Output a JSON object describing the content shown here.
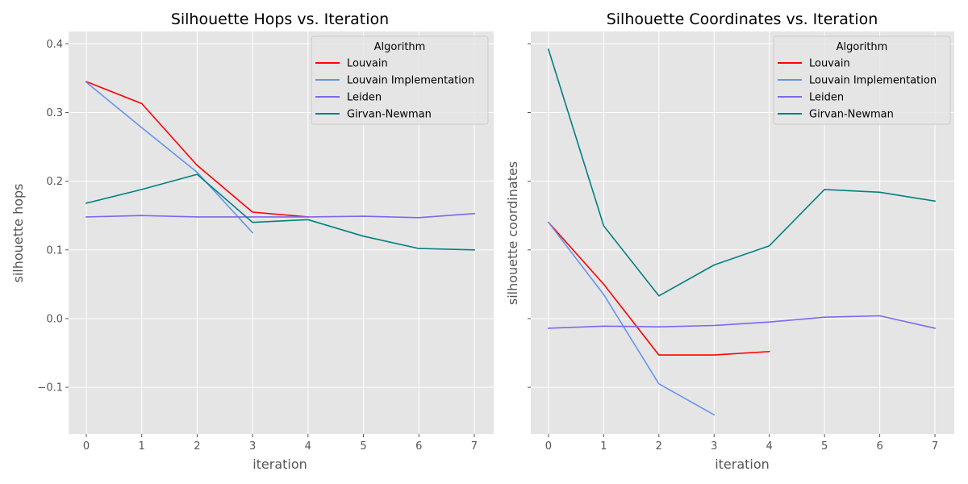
{
  "colors": {
    "plot_background": "#e5e5e5",
    "grid": "#ffffff",
    "tick_text": "#555555"
  },
  "chart_data": [
    {
      "type": "line",
      "title": "Silhouette Hops vs. Iteration",
      "xlabel": "iteration",
      "ylabel": "silhouette hops",
      "xlim": [
        -0.32,
        7.35
      ],
      "ylim": [
        -0.168,
        0.418
      ],
      "xticks": [
        0,
        1,
        2,
        3,
        4,
        5,
        6,
        7
      ],
      "yticks": [
        -0.1,
        0.0,
        0.1,
        0.2,
        0.3,
        0.4
      ],
      "ytick_labels": [
        "−0.1",
        "0.0",
        "0.1",
        "0.2",
        "0.3",
        "0.4"
      ],
      "grid": true,
      "legend": {
        "title": "Algorithm",
        "placement": "top-right"
      },
      "series": [
        {
          "name": "Louvain",
          "color": "#ff0000",
          "x": [
            0,
            1,
            2,
            3,
            4
          ],
          "y": [
            0.345,
            0.313,
            0.223,
            0.155,
            0.148
          ]
        },
        {
          "name": "Louvain Implementation",
          "color": "#6495ed",
          "x": [
            0,
            1,
            2,
            3
          ],
          "y": [
            0.344,
            0.278,
            0.213,
            0.125
          ]
        },
        {
          "name": "Leiden",
          "color": "#7b68ee",
          "x": [
            0,
            1,
            2,
            3,
            4,
            5,
            6,
            7
          ],
          "y": [
            0.148,
            0.15,
            0.148,
            0.148,
            0.148,
            0.149,
            0.147,
            0.153
          ]
        },
        {
          "name": "Girvan-Newman",
          "color": "#008080",
          "x": [
            0,
            1,
            2,
            3,
            4,
            5,
            6,
            7
          ],
          "y": [
            0.168,
            0.188,
            0.21,
            0.14,
            0.144,
            0.12,
            0.102,
            0.1
          ]
        }
      ]
    },
    {
      "type": "line",
      "title": "Silhouette Coordinates vs. Iteration",
      "xlabel": "iteration",
      "ylabel": "silhouette coordinates",
      "xlim": [
        -0.32,
        7.35
      ],
      "ylim": [
        -0.168,
        0.418
      ],
      "xticks": [
        0,
        1,
        2,
        3,
        4,
        5,
        6,
        7
      ],
      "yticks": [
        -0.1,
        0.0,
        0.1,
        0.2,
        0.3,
        0.4
      ],
      "ytick_labels": [],
      "grid": true,
      "legend": {
        "title": "Algorithm",
        "placement": "top-right"
      },
      "series": [
        {
          "name": "Louvain",
          "color": "#ff0000",
          "x": [
            0,
            1,
            2,
            3,
            4
          ],
          "y": [
            0.14,
            0.05,
            -0.053,
            -0.053,
            -0.048
          ]
        },
        {
          "name": "Louvain Implementation",
          "color": "#6495ed",
          "x": [
            0,
            1,
            2,
            3
          ],
          "y": [
            0.14,
            0.035,
            -0.095,
            -0.14
          ]
        },
        {
          "name": "Leiden",
          "color": "#7b68ee",
          "x": [
            0,
            1,
            2,
            3,
            4,
            5,
            6,
            7
          ],
          "y": [
            -0.014,
            -0.011,
            -0.012,
            -0.01,
            -0.005,
            0.002,
            0.004,
            -0.014
          ]
        },
        {
          "name": "Girvan-Newman",
          "color": "#008080",
          "x": [
            0,
            1,
            2,
            3,
            4,
            5,
            6,
            7
          ],
          "y": [
            0.392,
            0.135,
            0.033,
            0.078,
            0.106,
            0.188,
            0.184,
            0.171
          ]
        }
      ]
    }
  ]
}
